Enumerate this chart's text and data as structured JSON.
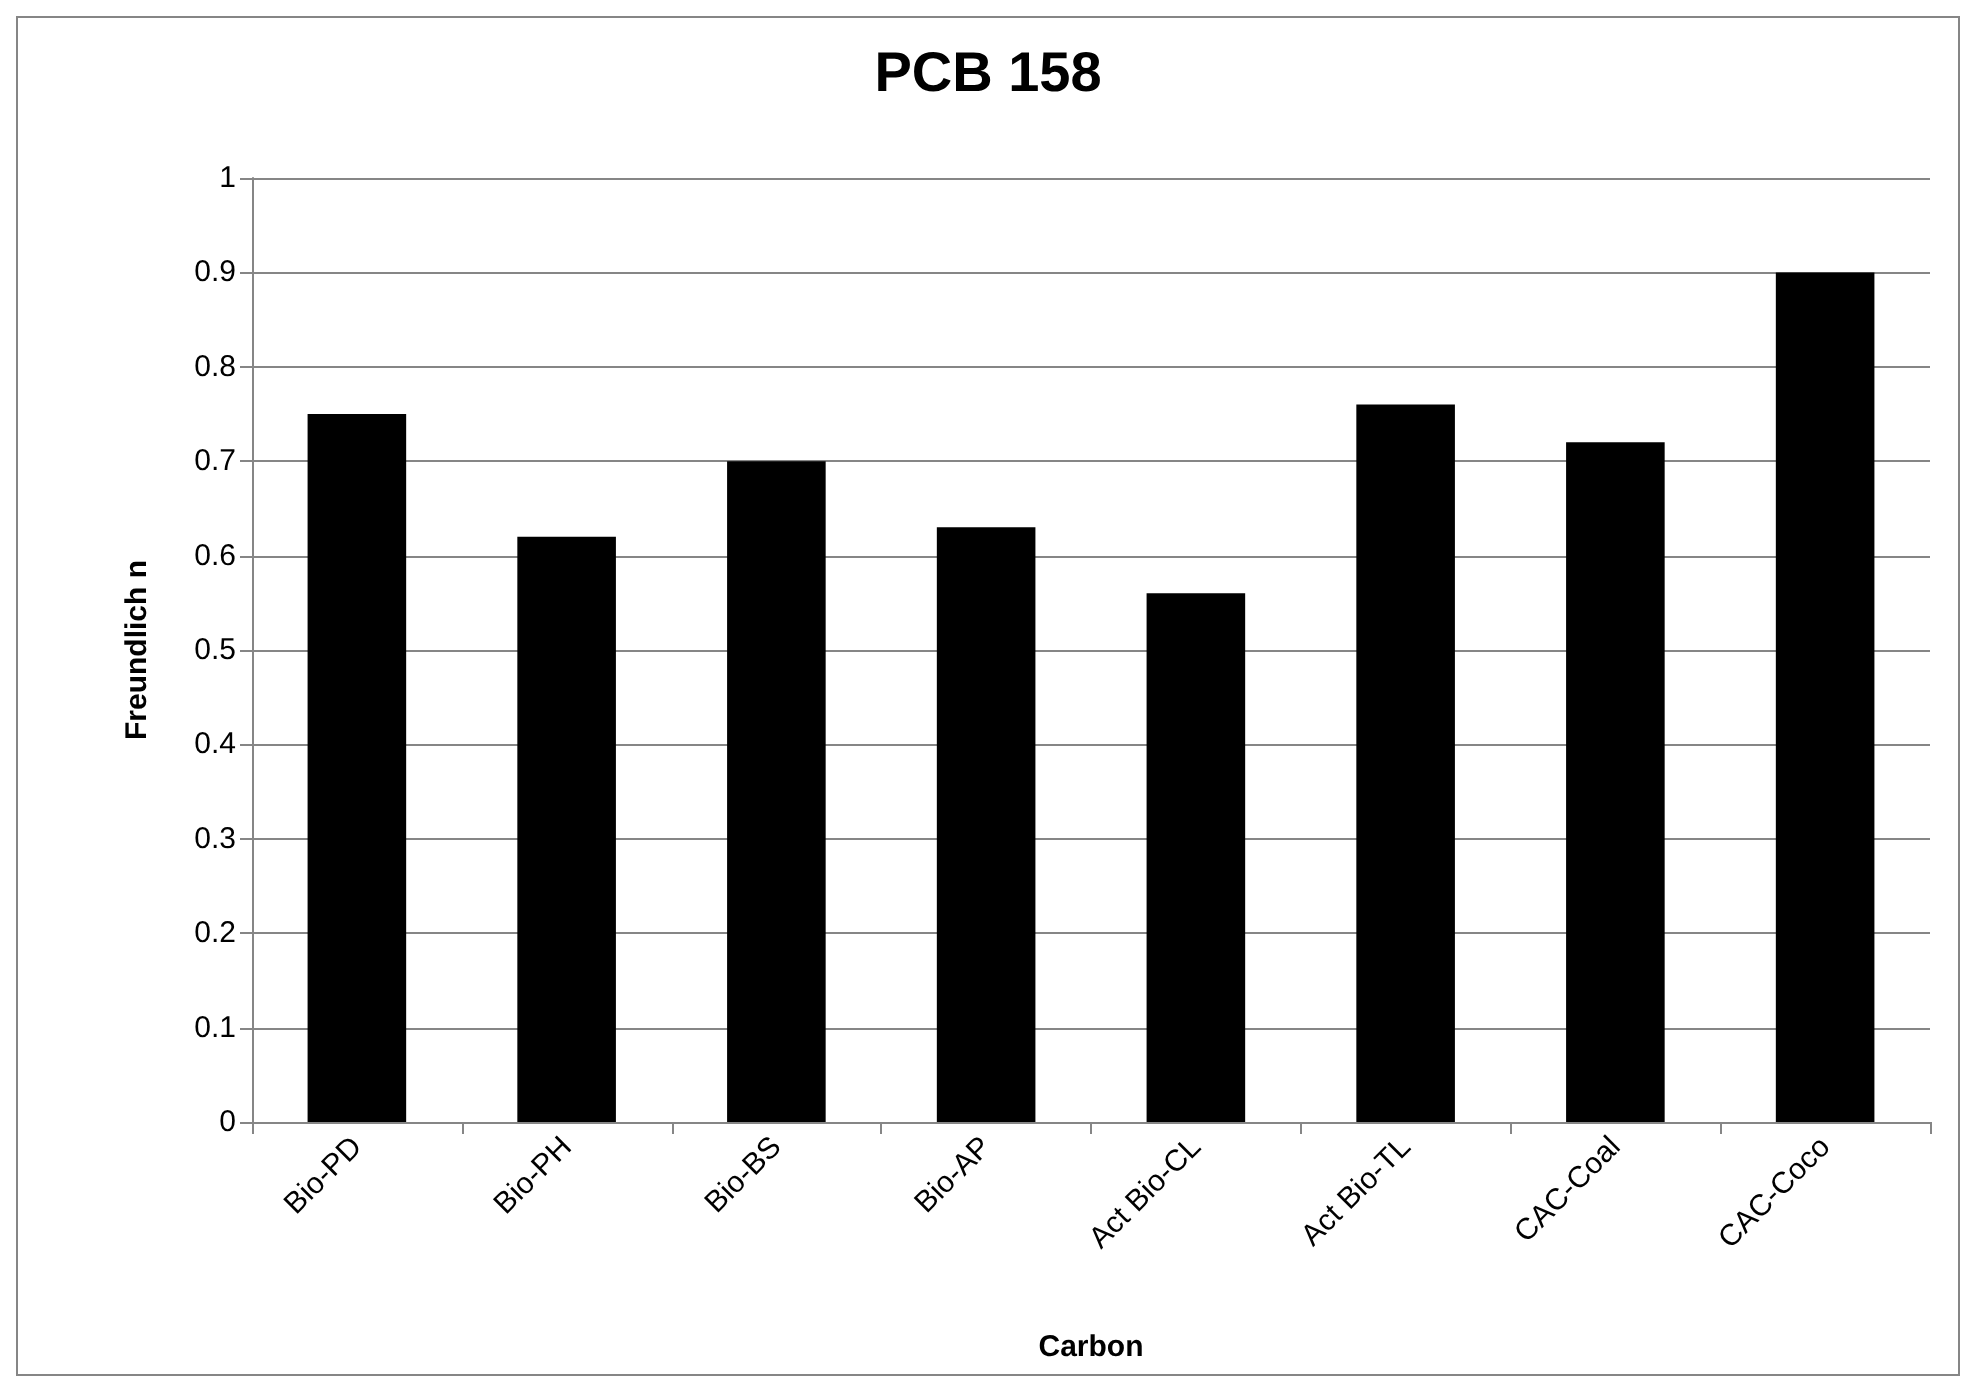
{
  "chart_data": {
    "type": "bar",
    "title": "PCB 158",
    "xlabel": "Carbon",
    "ylabel": "Freundlich n",
    "categories": [
      "Bio-PD",
      "Bio-PH",
      "Bio-BS",
      "Bio-AP",
      "Act Bio-CL",
      "Act Bio-TL",
      "CAC-Coal",
      "CAC-Coco"
    ],
    "values": [
      0.75,
      0.62,
      0.7,
      0.63,
      0.56,
      0.76,
      0.72,
      0.9
    ],
    "color": "#000000",
    "ylim": [
      0,
      1
    ],
    "yticks": [
      0,
      0.1,
      0.2,
      0.3,
      0.4,
      0.5,
      0.6,
      0.7,
      0.8,
      0.9,
      1
    ],
    "grid": "y"
  }
}
